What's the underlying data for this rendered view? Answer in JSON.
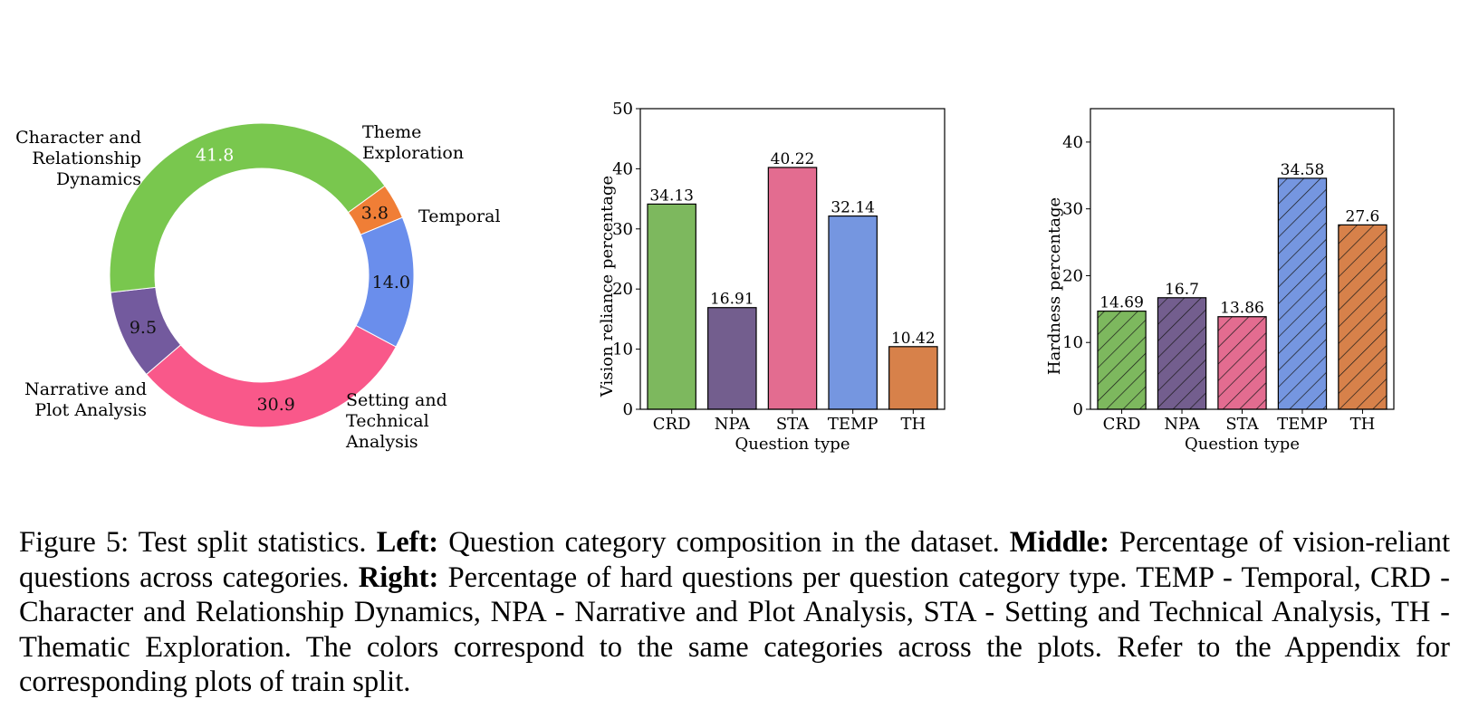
{
  "chart_data": [
    {
      "type": "pie",
      "title": "",
      "donut": true,
      "categories": [
        "Theme Exploration",
        "Temporal",
        "Setting and Technical Analysis",
        "Narrative and Plot Analysis",
        "Character and Relationship Dynamics"
      ],
      "label_lines": [
        [
          "Theme",
          "Exploration"
        ],
        [
          "Temporal"
        ],
        [
          "Setting and",
          "Technical",
          "Analysis"
        ],
        [
          "Narrative and",
          "Plot Analysis"
        ],
        [
          "Character and",
          "Relationship",
          "Dynamics"
        ]
      ],
      "values": [
        3.8,
        14.0,
        30.9,
        9.5,
        41.8
      ],
      "value_labels": [
        "3.8",
        "14.0",
        "30.9",
        "9.5",
        "41.8"
      ],
      "colors": [
        "#f07e36",
        "#6a8eec",
        "#f9588a",
        "#735a9e",
        "#79c74e"
      ]
    },
    {
      "type": "bar",
      "title": "",
      "xlabel": "Question type",
      "ylabel": "Vision reliance percentage",
      "categories": [
        "CRD",
        "NPA",
        "STA",
        "TEMP",
        "TH"
      ],
      "values": [
        34.13,
        16.91,
        40.22,
        32.14,
        10.42
      ],
      "value_labels": [
        "34.13",
        "16.91",
        "40.22",
        "32.14",
        "10.42"
      ],
      "ylim": [
        0,
        50
      ],
      "yticks": [
        "0",
        "10",
        "20",
        "30",
        "40",
        "50"
      ],
      "colors": [
        "#7db85e",
        "#735e8e",
        "#e36c90",
        "#7596e0",
        "#d7814a"
      ],
      "hatch": false,
      "grid": false
    },
    {
      "type": "bar",
      "title": "",
      "xlabel": "Question type",
      "ylabel": "Hardness percentage",
      "categories": [
        "CRD",
        "NPA",
        "STA",
        "TEMP",
        "TH"
      ],
      "values": [
        14.69,
        16.7,
        13.86,
        34.58,
        27.6
      ],
      "value_labels": [
        "14.69",
        "16.7",
        "13.86",
        "34.58",
        "27.6"
      ],
      "ylim": [
        0,
        45
      ],
      "yticks": [
        "0",
        "10",
        "20",
        "30",
        "40"
      ],
      "colors": [
        "#7db85e",
        "#735e8e",
        "#e36c90",
        "#7596e0",
        "#d7814a"
      ],
      "hatch": true,
      "grid": false
    }
  ],
  "caption": {
    "figure_label": "Figure 5: Test split statistics.",
    "left_label": "Left:",
    "left_text": "Question category composition in the dataset.",
    "middle_label": "Middle:",
    "middle_text": "Percentage of vision-reliant questions across categories.",
    "right_label": "Right:",
    "right_text": "Percentage of hard questions per question category type. TEMP - Temporal, CRD - Character and Relationship Dynamics, NPA - Narrative and Plot Analysis, STA - Setting and Technical Analysis, TH - Thematic Exploration. The colors correspond to the same categories across the plots. Refer to the Appendix for corresponding plots of train split."
  }
}
